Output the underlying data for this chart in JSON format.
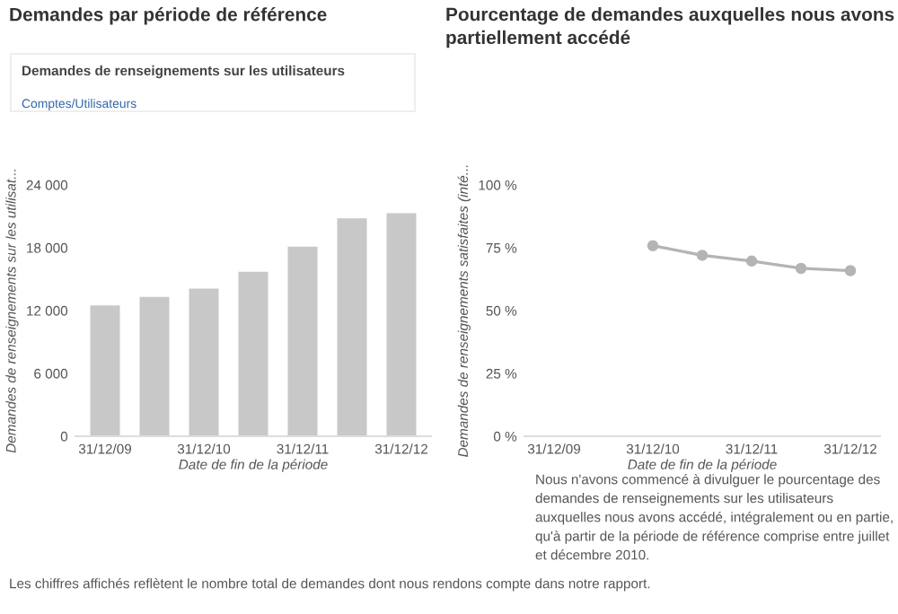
{
  "chart_data": [
    {
      "type": "bar",
      "title": "Demandes par période de référence",
      "subtitle": "Demandes de renseignements sur les utilisateurs",
      "xlabel": "Date de fin de la période",
      "ylabel": "Demandes de renseignements sur les utilisat...",
      "categories": [
        "31/12/09",
        null,
        "31/12/10",
        null,
        "31/12/11",
        null,
        "31/12/12"
      ],
      "values": [
        12500,
        13300,
        14100,
        15700,
        18100,
        20800,
        21300
      ],
      "color": "#c8c8c8",
      "ylim": [
        0,
        24000
      ],
      "yticks": [
        {
          "value": 0,
          "label": "0"
        },
        {
          "value": 6000,
          "label": "6 000"
        },
        {
          "value": 12000,
          "label": "12 000"
        },
        {
          "value": 18000,
          "label": "18 000"
        },
        {
          "value": 24000,
          "label": "24 000"
        }
      ],
      "annotations": [
        "Comptes/Utilisateurs",
        "Les chiffres affichés reflètent le nombre total de demandes dont nous rendons compte dans notre rapport."
      ]
    },
    {
      "type": "line",
      "title": "Pourcentage de demandes auxquelles nous avons\npartiellement accédé",
      "xlabel": "Date de fin de la période",
      "ylabel": "Demandes de renseignements satisfaites (inté...",
      "categories": [
        "31/12/09",
        null,
        "31/12/10",
        null,
        "31/12/11",
        null,
        "31/12/12"
      ],
      "values": [
        null,
        null,
        75.8,
        72.0,
        69.7,
        66.8,
        65.9
      ],
      "color": "#b4b4b4",
      "marker": "circle",
      "ylim": [
        0,
        100
      ],
      "yticks": [
        {
          "value": 0,
          "label": "0 %"
        },
        {
          "value": 25,
          "label": "25 %"
        },
        {
          "value": 50,
          "label": "50 %"
        },
        {
          "value": 75,
          "label": "75 %"
        },
        {
          "value": 100,
          "label": "100 %"
        }
      ],
      "annotations": [
        "Nous n'avons commencé à divulguer le pourcentage des demandes de renseignements sur les utilisateurs auxquelles nous avons accédé, intégralement ou en partie, qu'à partir de la période de référence comprise entre juillet et décembre 2010."
      ]
    }
  ]
}
